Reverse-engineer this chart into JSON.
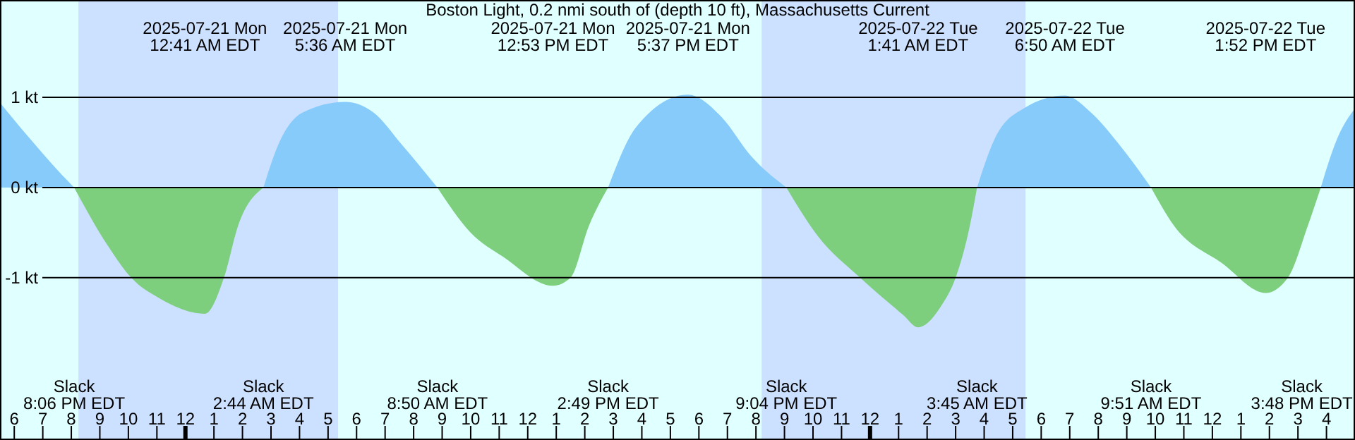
{
  "chart_data": {
    "type": "area",
    "title": "Boston Light, 0.2 nmi south of (depth 10 ft), Massachusetts Current",
    "xlim": [
      "2025-07-20T17:30",
      "2025-07-22T17:00"
    ],
    "ylim": [
      -2.8,
      2.08
    ],
    "yticks": [
      {
        "value": 1,
        "label": "1 kt"
      },
      {
        "value": 0,
        "label": "0 kt"
      },
      {
        "value": -1,
        "label": "-1 kt"
      }
    ],
    "xticks": [
      {
        "value": "2025-07-20T18:00",
        "label": "6"
      },
      {
        "value": "2025-07-20T19:00",
        "label": "7"
      },
      {
        "value": "2025-07-20T20:00",
        "label": "8"
      },
      {
        "value": "2025-07-20T21:00",
        "label": "9"
      },
      {
        "value": "2025-07-20T22:00",
        "label": "10"
      },
      {
        "value": "2025-07-20T23:00",
        "label": "11"
      },
      {
        "value": "2025-07-21T00:00",
        "label": "12"
      },
      {
        "value": "2025-07-21T01:00",
        "label": "1"
      },
      {
        "value": "2025-07-21T02:00",
        "label": "2"
      },
      {
        "value": "2025-07-21T03:00",
        "label": "3"
      },
      {
        "value": "2025-07-21T04:00",
        "label": "4"
      },
      {
        "value": "2025-07-21T05:00",
        "label": "5"
      },
      {
        "value": "2025-07-21T06:00",
        "label": "6"
      },
      {
        "value": "2025-07-21T07:00",
        "label": "7"
      },
      {
        "value": "2025-07-21T08:00",
        "label": "8"
      },
      {
        "value": "2025-07-21T09:00",
        "label": "9"
      },
      {
        "value": "2025-07-21T10:00",
        "label": "10"
      },
      {
        "value": "2025-07-21T11:00",
        "label": "11"
      },
      {
        "value": "2025-07-21T12:00",
        "label": "12"
      },
      {
        "value": "2025-07-21T13:00",
        "label": "1"
      },
      {
        "value": "2025-07-21T14:00",
        "label": "2"
      },
      {
        "value": "2025-07-21T15:00",
        "label": "3"
      },
      {
        "value": "2025-07-21T16:00",
        "label": "4"
      },
      {
        "value": "2025-07-21T17:00",
        "label": "5"
      },
      {
        "value": "2025-07-21T18:00",
        "label": "6"
      },
      {
        "value": "2025-07-21T19:00",
        "label": "7"
      },
      {
        "value": "2025-07-21T20:00",
        "label": "8"
      },
      {
        "value": "2025-07-21T21:00",
        "label": "9"
      },
      {
        "value": "2025-07-21T22:00",
        "label": "10"
      },
      {
        "value": "2025-07-21T23:00",
        "label": "11"
      },
      {
        "value": "2025-07-22T00:00",
        "label": "12"
      },
      {
        "value": "2025-07-22T01:00",
        "label": "1"
      },
      {
        "value": "2025-07-22T02:00",
        "label": "2"
      },
      {
        "value": "2025-07-22T03:00",
        "label": "3"
      },
      {
        "value": "2025-07-22T04:00",
        "label": "4"
      },
      {
        "value": "2025-07-22T05:00",
        "label": "5"
      },
      {
        "value": "2025-07-22T06:00",
        "label": "6"
      },
      {
        "value": "2025-07-22T07:00",
        "label": "7"
      },
      {
        "value": "2025-07-22T08:00",
        "label": "8"
      },
      {
        "value": "2025-07-22T09:00",
        "label": "9"
      },
      {
        "value": "2025-07-22T10:00",
        "label": "10"
      },
      {
        "value": "2025-07-22T11:00",
        "label": "11"
      },
      {
        "value": "2025-07-22T12:00",
        "label": "12"
      },
      {
        "value": "2025-07-22T13:00",
        "label": "1"
      },
      {
        "value": "2025-07-22T14:00",
        "label": "2"
      },
      {
        "value": "2025-07-22T15:00",
        "label": "3"
      },
      {
        "value": "2025-07-22T16:00",
        "label": "4"
      },
      {
        "value": "2025-07-22T17:00",
        "label": null
      }
    ],
    "grid": "y",
    "series": [
      {
        "color": "#87cbfa",
        "x": [
          "2025-07-20T17:30",
          "2025-07-20T18:30",
          "2025-07-20T19:30",
          "2025-07-20T20:06",
          "2025-07-20T23:00",
          "2025-07-21T02:44",
          "2025-07-21T03:15",
          "2025-07-21T04:06",
          "2025-07-21T05:36",
          "2025-07-21T06:36",
          "2025-07-21T07:36",
          "2025-07-21T08:50",
          "2025-07-21T11:00",
          "2025-07-21T14:49",
          "2025-07-21T15:48",
          "2025-07-21T17:37",
          "2025-07-21T18:48",
          "2025-07-21T19:48",
          "2025-07-21T21:04",
          "2025-07-22T00:00",
          "2025-07-22T03:45",
          "2025-07-22T04:24",
          "2025-07-22T05:24",
          "2025-07-22T06:50",
          "2025-07-22T07:45",
          "2025-07-22T08:45",
          "2025-07-22T09:51",
          "2025-07-22T12:00",
          "2025-07-22T15:48",
          "2025-07-22T16:24",
          "2025-07-22T17:00"
        ],
        "values": [
          0.94,
          0.56,
          0.2,
          0,
          null,
          0,
          0.47,
          0.83,
          0.95,
          0.83,
          0.47,
          0,
          null,
          0,
          0.67,
          1.03,
          0.78,
          0.36,
          0,
          null,
          0,
          0.56,
          0.88,
          1.02,
          0.83,
          0.47,
          0,
          null,
          0,
          0.56,
          0.88
        ]
      },
      {
        "color": "#7dce7d",
        "x": [
          "2025-07-20T20:06",
          "2025-07-20T21:15",
          "2025-07-20T22:06",
          "2025-07-20T23:06",
          "2025-07-21T00:41",
          "2025-07-21T01:21",
          "2025-07-21T01:51",
          "2025-07-21T02:44",
          "2025-07-21T06:00",
          "2025-07-21T08:50",
          "2025-07-21T10:00",
          "2025-07-21T11:09",
          "2025-07-21T12:53",
          "2025-07-21T13:30",
          "2025-07-21T14:09",
          "2025-07-21T14:49",
          "2025-07-21T18:00",
          "2025-07-21T21:04",
          "2025-07-21T22:09",
          "2025-07-21T23:39",
          "2025-07-22T01:09",
          "2025-07-22T01:41",
          "2025-07-22T02:30",
          "2025-07-22T03:00",
          "2025-07-22T03:30",
          "2025-07-22T03:45",
          "2025-07-22T07:00",
          "2025-07-22T09:51",
          "2025-07-22T10:39",
          "2025-07-22T12:21",
          "2025-07-22T13:52",
          "2025-07-22T14:39",
          "2025-07-22T15:21",
          "2025-07-22T15:48"
        ],
        "values": [
          0,
          -0.63,
          -1.0,
          -1.23,
          -1.4,
          -1.0,
          -0.42,
          0,
          null,
          0,
          -0.5,
          -0.77,
          -1.09,
          -1.0,
          -0.42,
          0,
          null,
          0,
          -0.53,
          -1.0,
          -1.41,
          -1.55,
          -1.31,
          -1.0,
          -0.42,
          0,
          null,
          0,
          -0.42,
          -0.84,
          -1.17,
          -1.0,
          -0.42,
          0
        ]
      }
    ],
    "bands": [
      {
        "axis": "x",
        "from": "2025-07-20T20:15",
        "to": "2025-07-21T05:21",
        "color": "#cce0ff"
      },
      {
        "axis": "x",
        "from": "2025-07-21T20:12",
        "to": "2025-07-22T05:27",
        "color": "#cce0ff"
      }
    ],
    "annotations": [
      "2025-07-21 Mon\n12:41 AM EDT",
      "2025-07-21 Mon\n5:36 AM EDT",
      "2025-07-21 Mon\n12:53 PM EDT",
      "2025-07-21 Mon\n5:37 PM EDT",
      "2025-07-22 Tue\n1:41 AM EDT",
      "2025-07-22 Tue\n6:50 AM EDT",
      "2025-07-22 Tue\n1:52 PM EDT",
      "Slack\n8:06 PM EDT",
      "Slack\n2:44 AM EDT",
      "Slack\n8:50 AM EDT",
      "Slack\n2:49 PM EDT",
      "Slack\n9:04 PM EDT",
      "Slack\n3:45 AM EDT",
      "Slack\n9:51 AM EDT",
      "Slack\n3:48 PM EDT"
    ]
  }
}
